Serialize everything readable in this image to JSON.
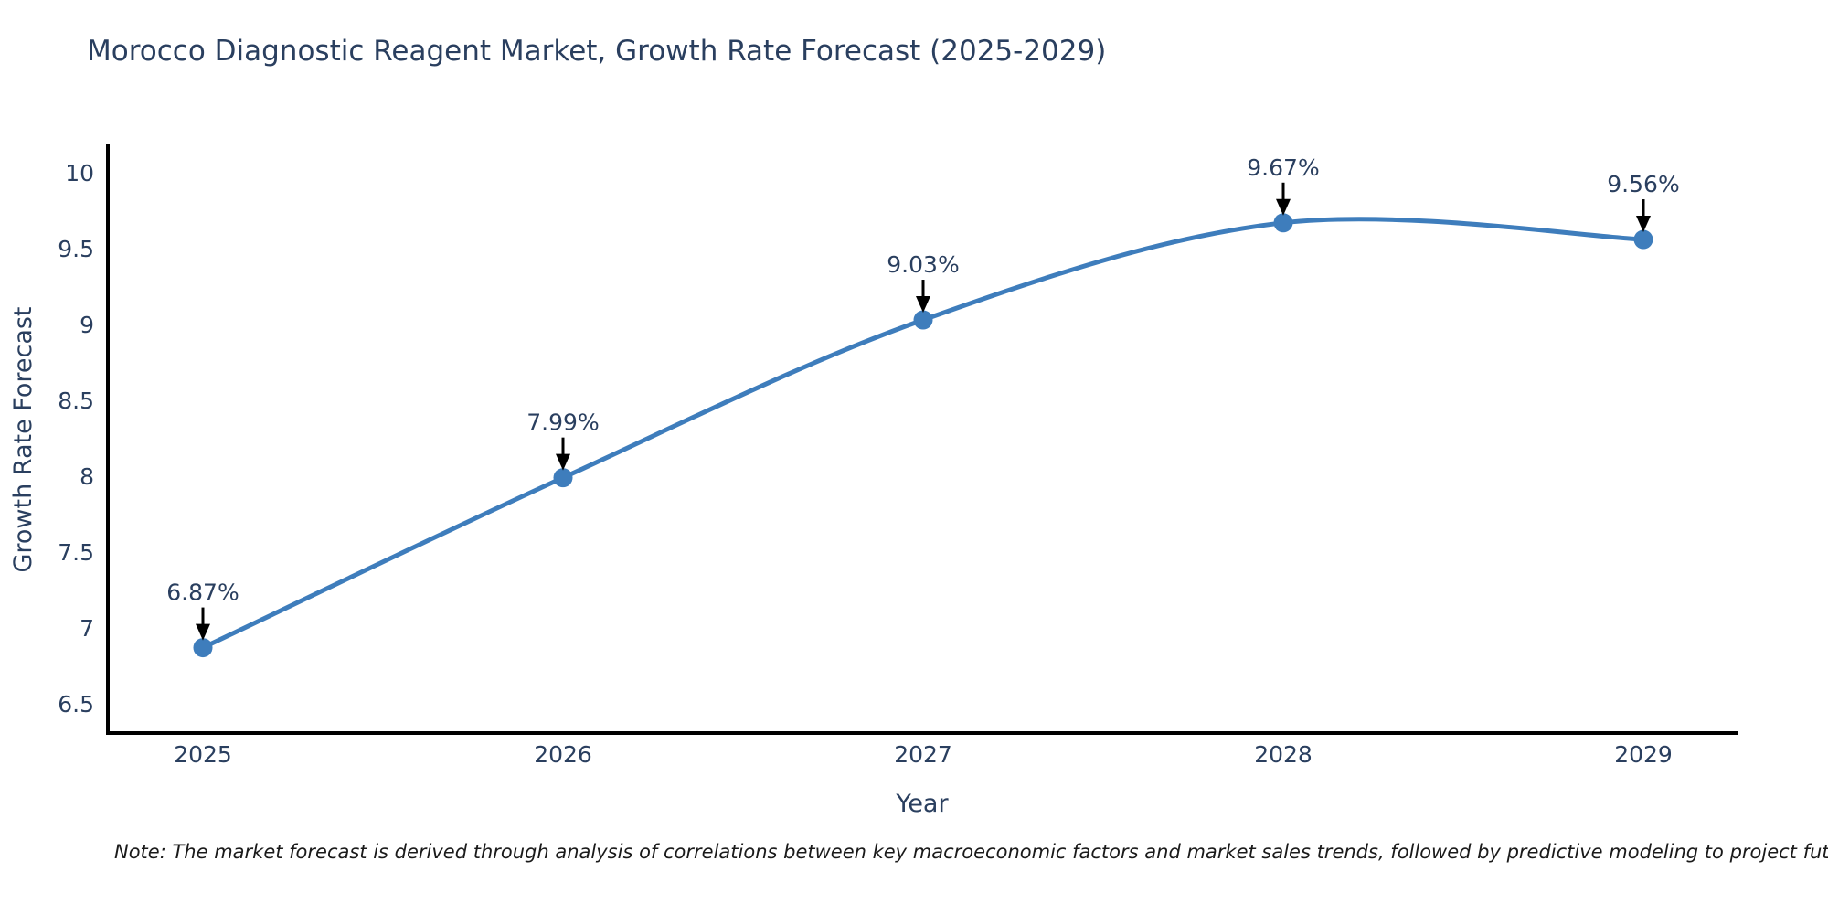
{
  "title": "Morocco Diagnostic Reagent Market, Growth Rate Forecast (2025-2029)",
  "note": "Note: The market forecast is derived through analysis of correlations between key macroeconomic factors and market sales trends, followed by predictive modeling to project future sales.",
  "chart_data": {
    "type": "line",
    "title": "Morocco Diagnostic Reagent Market, Growth Rate Forecast (2025-2029)",
    "xlabel": "Year",
    "ylabel": "Growth Rate Forecast",
    "categories": [
      "2025",
      "2026",
      "2027",
      "2028",
      "2029"
    ],
    "series": [
      {
        "name": "Growth Rate Forecast",
        "values": [
          6.87,
          7.99,
          9.03,
          9.67,
          9.56
        ],
        "point_labels": [
          "6.87%",
          "7.99%",
          "9.03%",
          "9.67%",
          "9.56%"
        ]
      }
    ],
    "yticks": [
      "6.5",
      "7",
      "7.5",
      "8",
      "8.5",
      "9",
      "9.5",
      "10"
    ],
    "ylim": [
      6.31,
      10.18
    ],
    "grid": false,
    "legend_position": "none",
    "curve": "spline",
    "colors": {
      "line": "#3e7dbc",
      "marker": "#3e7dbc",
      "axis": "#000000",
      "text": "#2a3f5f",
      "annotation_arrow": "#000000"
    }
  }
}
